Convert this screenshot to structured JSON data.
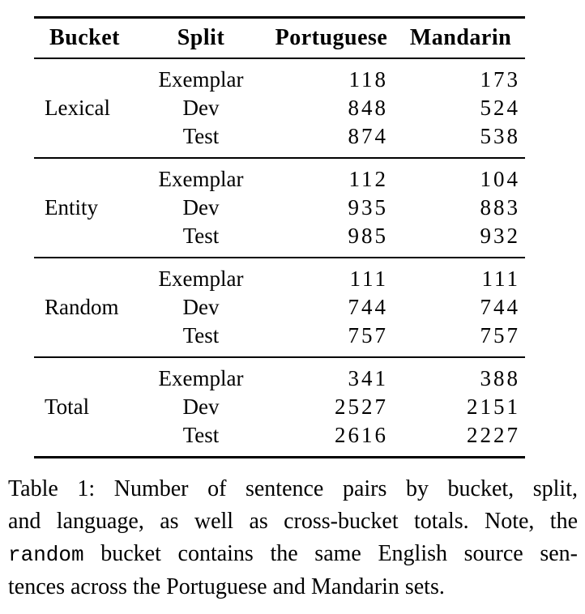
{
  "page": {
    "background_color": "#ffffff",
    "text_color": "#000000",
    "rule_color": "#000000"
  },
  "table": {
    "headers": [
      "Bucket",
      "Split",
      "Portuguese",
      "Mandarin"
    ],
    "groups": [
      {
        "bucket": "Lexical",
        "rows": [
          {
            "split": "Exemplar",
            "portuguese": "118",
            "mandarin": "173"
          },
          {
            "split": "Dev",
            "portuguese": "848",
            "mandarin": "524"
          },
          {
            "split": "Test",
            "portuguese": "874",
            "mandarin": "538"
          }
        ]
      },
      {
        "bucket": "Entity",
        "rows": [
          {
            "split": "Exemplar",
            "portuguese": "112",
            "mandarin": "104"
          },
          {
            "split": "Dev",
            "portuguese": "935",
            "mandarin": "883"
          },
          {
            "split": "Test",
            "portuguese": "985",
            "mandarin": "932"
          }
        ]
      },
      {
        "bucket": "Random",
        "rows": [
          {
            "split": "Exemplar",
            "portuguese": "111",
            "mandarin": "111"
          },
          {
            "split": "Dev",
            "portuguese": "744",
            "mandarin": "744"
          },
          {
            "split": "Test",
            "portuguese": "757",
            "mandarin": "757"
          }
        ]
      },
      {
        "bucket": "Total",
        "rows": [
          {
            "split": "Exemplar",
            "portuguese": "341",
            "mandarin": "388"
          },
          {
            "split": "Dev",
            "portuguese": "2527",
            "mandarin": "2151"
          },
          {
            "split": "Test",
            "portuguese": "2616",
            "mandarin": "2227"
          }
        ]
      }
    ]
  },
  "caption": {
    "lines": [
      {
        "justify": true,
        "segments": [
          {
            "text": "Table 1: Number of sentence pairs by bucket, split,",
            "mono": false
          }
        ]
      },
      {
        "justify": true,
        "segments": [
          {
            "text": "and language, as well as cross-bucket totals. Note, the",
            "mono": false
          }
        ]
      },
      {
        "justify": true,
        "segments": [
          {
            "text": "random",
            "mono": true
          },
          {
            "text": " bucket contains the same English source sen-",
            "mono": false
          }
        ]
      },
      {
        "justify": false,
        "segments": [
          {
            "text": "tences across the Portuguese and Mandarin sets.",
            "mono": false
          }
        ]
      }
    ]
  }
}
